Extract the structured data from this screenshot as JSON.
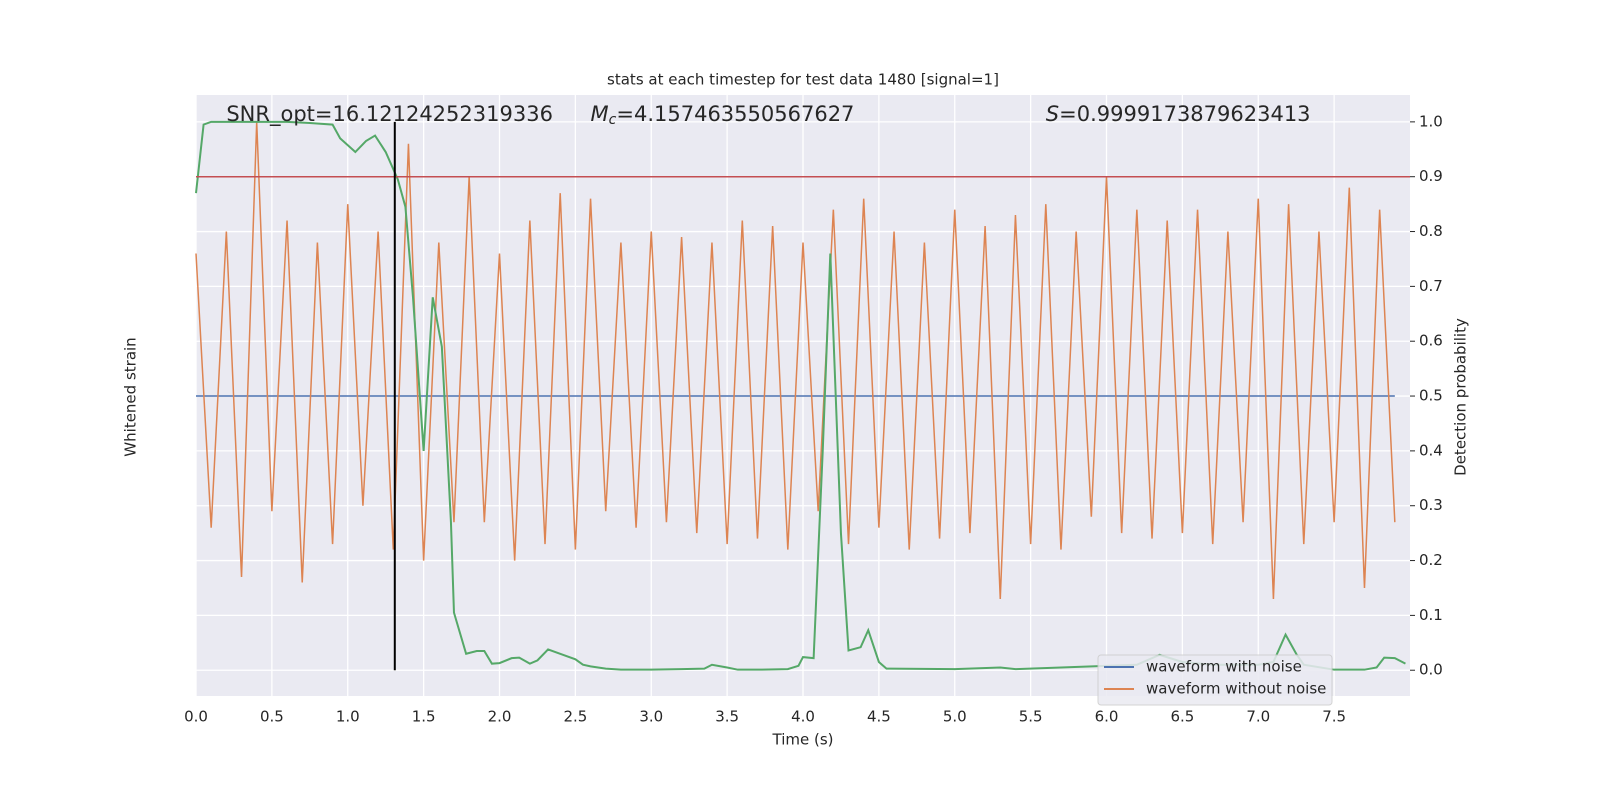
{
  "chart_data": {
    "type": "line",
    "title": "stats at each timestep for test data 1480 [signal=1]",
    "xlabel": "Time (s)",
    "ylabel": "Whitened strain",
    "y2label": "Detection probability",
    "annotations": [
      {
        "text": "SNR_opt=16.12124252319336",
        "x": 0.2
      },
      {
        "symbol": "M",
        "sub": "c",
        "text": "=4.157463550567627",
        "x": 2.6
      },
      {
        "symbol": "S",
        "text": "=0.9999173879623413",
        "x": 5.6
      }
    ],
    "xlim": [
      0,
      8.0
    ],
    "xticks": [
      {
        "value": 0,
        "label": "0.0"
      },
      0.5,
      {
        "value": 1,
        "label": "1.0"
      },
      1.5,
      {
        "value": 2,
        "label": "2.0"
      },
      2.5,
      {
        "value": 3,
        "label": "3.0"
      },
      3.5,
      {
        "value": 4,
        "label": "4.0"
      },
      4.5,
      {
        "value": 5,
        "label": "5.0"
      },
      5.5,
      {
        "value": 6,
        "label": "6.0"
      },
      6.5,
      {
        "value": 7,
        "label": "7.0"
      },
      7.5
    ],
    "y2lim": [
      -0.047,
      1.049
    ],
    "y2ticks": [
      {
        "value": 0,
        "label": "0.0"
      },
      0.1,
      0.2,
      0.3,
      0.4,
      0.5,
      0.6,
      0.7,
      0.8,
      0.9,
      {
        "value": 1,
        "label": "1.0"
      }
    ],
    "grid": true,
    "legend": "lower right",
    "x": [
      0.0,
      0.1,
      0.2,
      0.3,
      0.4,
      0.5,
      0.6,
      0.7,
      0.8,
      0.9,
      1.0,
      1.1,
      1.2,
      1.3,
      1.4,
      1.5,
      1.6,
      1.7,
      1.8,
      1.9,
      2.0,
      2.1,
      2.2,
      2.3,
      2.4,
      2.5,
      2.6,
      2.7,
      2.8,
      2.9,
      3.0,
      3.1,
      3.2,
      3.3,
      3.4,
      3.5,
      3.6,
      3.7,
      3.8,
      3.9,
      4.0,
      4.1,
      4.2,
      4.3,
      4.4,
      4.5,
      4.6,
      4.7,
      4.8,
      4.9,
      5.0,
      5.1,
      5.2,
      5.3,
      5.4,
      5.5,
      5.6,
      5.7,
      5.8,
      5.9,
      6.0,
      6.1,
      6.2,
      6.3,
      6.4,
      6.5,
      6.6,
      6.7,
      6.8,
      6.9,
      7.0,
      7.1,
      7.2,
      7.3,
      7.4,
      7.5,
      7.6,
      7.7,
      7.8,
      7.9
    ],
    "series": [
      {
        "name": "waveform with noise",
        "color": "#4c72b0",
        "values": [
          0.5,
          0.5,
          0.5,
          0.5,
          0.5,
          0.5,
          0.5,
          0.5,
          0.5,
          0.5,
          0.5,
          0.5,
          0.5,
          0.5,
          0.5,
          0.5,
          0.5,
          0.5,
          0.5,
          0.5,
          0.5,
          0.5,
          0.5,
          0.5,
          0.5,
          0.5,
          0.5,
          0.5,
          0.5,
          0.5,
          0.5,
          0.5,
          0.5,
          0.5,
          0.5,
          0.5,
          0.5,
          0.5,
          0.5,
          0.5,
          0.5,
          0.5,
          0.5,
          0.5,
          0.5,
          0.5,
          0.5,
          0.5,
          0.5,
          0.5,
          0.5,
          0.5,
          0.5,
          0.5,
          0.5,
          0.5,
          0.5,
          0.5,
          0.5,
          0.5,
          0.5,
          0.5,
          0.5,
          0.5,
          0.5,
          0.5,
          0.5,
          0.5,
          0.5,
          0.5,
          0.5,
          0.5,
          0.5,
          0.5,
          0.5,
          0.5,
          0.5,
          0.5,
          0.5,
          0.5
        ]
      },
      {
        "name": "waveform without noise",
        "color": "#dd8452",
        "values": [
          0.76,
          0.26,
          0.8,
          0.17,
          1.0,
          0.29,
          0.82,
          0.16,
          0.78,
          0.23,
          0.85,
          0.3,
          0.8,
          0.22,
          0.96,
          0.2,
          0.78,
          0.27,
          0.9,
          0.27,
          0.76,
          0.2,
          0.82,
          0.23,
          0.87,
          0.22,
          0.86,
          0.29,
          0.78,
          0.26,
          0.8,
          0.27,
          0.79,
          0.25,
          0.78,
          0.23,
          0.82,
          0.24,
          0.81,
          0.22,
          0.78,
          0.29,
          0.84,
          0.23,
          0.86,
          0.26,
          0.8,
          0.22,
          0.78,
          0.24,
          0.84,
          0.25,
          0.81,
          0.13,
          0.83,
          0.23,
          0.85,
          0.22,
          0.8,
          0.28,
          0.9,
          0.25,
          0.84,
          0.24,
          0.82,
          0.25,
          0.84,
          0.23,
          0.8,
          0.27,
          0.86,
          0.13,
          0.85,
          0.23,
          0.8,
          0.27,
          0.88,
          0.15,
          0.84,
          0.27
        ]
      },
      {
        "color": "#55a868",
        "axis": "y2",
        "x": [
          0.0,
          0.05,
          0.1,
          0.2,
          0.4,
          0.6,
          0.75,
          0.9,
          0.95,
          1.05,
          1.12,
          1.18,
          1.25,
          1.33,
          1.38,
          1.43,
          1.5,
          1.56,
          1.62,
          1.68,
          1.7,
          1.78,
          1.85,
          1.9,
          1.95,
          2.0,
          2.08,
          2.13,
          2.2,
          2.25,
          2.32,
          2.4,
          2.5,
          2.55,
          2.6,
          2.7,
          2.8,
          3.0,
          3.2,
          3.35,
          3.4,
          3.5,
          3.57,
          3.7,
          3.9,
          3.97,
          4.0,
          4.07,
          4.13,
          4.18,
          4.25,
          4.3,
          4.38,
          4.43,
          4.5,
          4.55,
          5.0,
          5.3,
          5.4,
          6.2,
          6.35,
          6.5,
          6.7,
          7.0,
          7.1,
          7.18,
          7.25,
          7.3,
          7.5,
          7.7,
          7.78,
          7.83,
          7.9,
          7.97
        ],
        "values": [
          0.87,
          0.995,
          1.0,
          1.0,
          1.0,
          1.0,
          0.998,
          0.995,
          0.97,
          0.945,
          0.965,
          0.975,
          0.945,
          0.895,
          0.845,
          0.68,
          0.4,
          0.68,
          0.59,
          0.27,
          0.105,
          0.03,
          0.035,
          0.035,
          0.012,
          0.013,
          0.022,
          0.023,
          0.012,
          0.018,
          0.038,
          0.03,
          0.02,
          0.01,
          0.007,
          0.003,
          0.001,
          0.001,
          0.002,
          0.003,
          0.01,
          0.005,
          0.001,
          0.001,
          0.002,
          0.008,
          0.024,
          0.022,
          0.4,
          0.76,
          0.25,
          0.036,
          0.042,
          0.073,
          0.015,
          0.003,
          0.002,
          0.005,
          0.002,
          0.01,
          0.028,
          0.015,
          0.01,
          0.01,
          0.015,
          0.065,
          0.03,
          0.01,
          0.001,
          0.001,
          0.005,
          0.023,
          0.022,
          0.012
        ]
      }
    ],
    "hline": 0.9,
    "hline_color": "#c44e52",
    "vline": 1.31,
    "vline_color": "#000000"
  }
}
